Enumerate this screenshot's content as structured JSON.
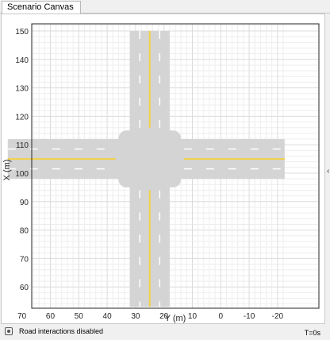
{
  "tab": {
    "label": "Scenario Canvas"
  },
  "axes": {
    "xlabel": "Y (m)",
    "ylabel": "X (m)",
    "x_ticks": [
      "70",
      "60",
      "50",
      "40",
      "30",
      "20",
      "10",
      "0",
      "-10",
      "-20"
    ],
    "y_ticks": [
      "150",
      "140",
      "130",
      "120",
      "110",
      "100",
      "90",
      "80",
      "70",
      "60"
    ]
  },
  "status": {
    "text": "Road interactions disabled",
    "time": "T=0s"
  },
  "colors": {
    "road": "#d4d4d4",
    "centerline": "#f2d046",
    "lane_marking": "#ffffff",
    "grid_major": "#dcdcdc",
    "grid_minor": "#eeeeee"
  }
}
